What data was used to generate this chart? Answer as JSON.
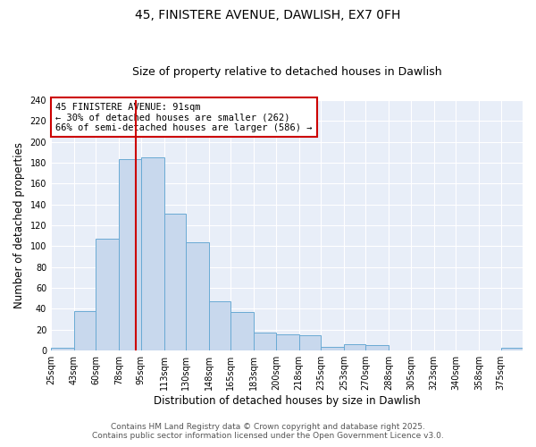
{
  "title": "45, FINISTERE AVENUE, DAWLISH, EX7 0FH",
  "subtitle": "Size of property relative to detached houses in Dawlish",
  "xlabel": "Distribution of detached houses by size in Dawlish",
  "ylabel": "Number of detached properties",
  "bin_labels": [
    "25sqm",
    "43sqm",
    "60sqm",
    "78sqm",
    "95sqm",
    "113sqm",
    "130sqm",
    "148sqm",
    "165sqm",
    "183sqm",
    "200sqm",
    "218sqm",
    "235sqm",
    "253sqm",
    "270sqm",
    "288sqm",
    "305sqm",
    "323sqm",
    "340sqm",
    "358sqm",
    "375sqm"
  ],
  "bin_edges": [
    25,
    43,
    60,
    78,
    95,
    113,
    130,
    148,
    165,
    183,
    200,
    218,
    235,
    253,
    270,
    288,
    305,
    323,
    340,
    358,
    375
  ],
  "bar_heights": [
    3,
    38,
    107,
    183,
    185,
    131,
    104,
    47,
    37,
    17,
    16,
    15,
    4,
    6,
    5,
    0,
    0,
    0,
    0,
    0,
    3
  ],
  "bar_color": "#c8d8ed",
  "bar_edge_color": "#6aaad4",
  "vline_x": 91,
  "vline_color": "#cc0000",
  "annotation_text": "45 FINISTERE AVENUE: 91sqm\n← 30% of detached houses are smaller (262)\n66% of semi-detached houses are larger (586) →",
  "annotation_box_color": "white",
  "annotation_box_edge_color": "#cc0000",
  "ylim": [
    0,
    240
  ],
  "yticks": [
    0,
    20,
    40,
    60,
    80,
    100,
    120,
    140,
    160,
    180,
    200,
    220,
    240
  ],
  "fig_background_color": "#ffffff",
  "plot_background_color": "#e8eef8",
  "grid_color": "#ffffff",
  "footer_line1": "Contains HM Land Registry data © Crown copyright and database right 2025.",
  "footer_line2": "Contains public sector information licensed under the Open Government Licence v3.0.",
  "title_fontsize": 10,
  "subtitle_fontsize": 9,
  "axis_label_fontsize": 8.5,
  "tick_fontsize": 7,
  "annotation_fontsize": 7.5,
  "footer_fontsize": 6.5
}
